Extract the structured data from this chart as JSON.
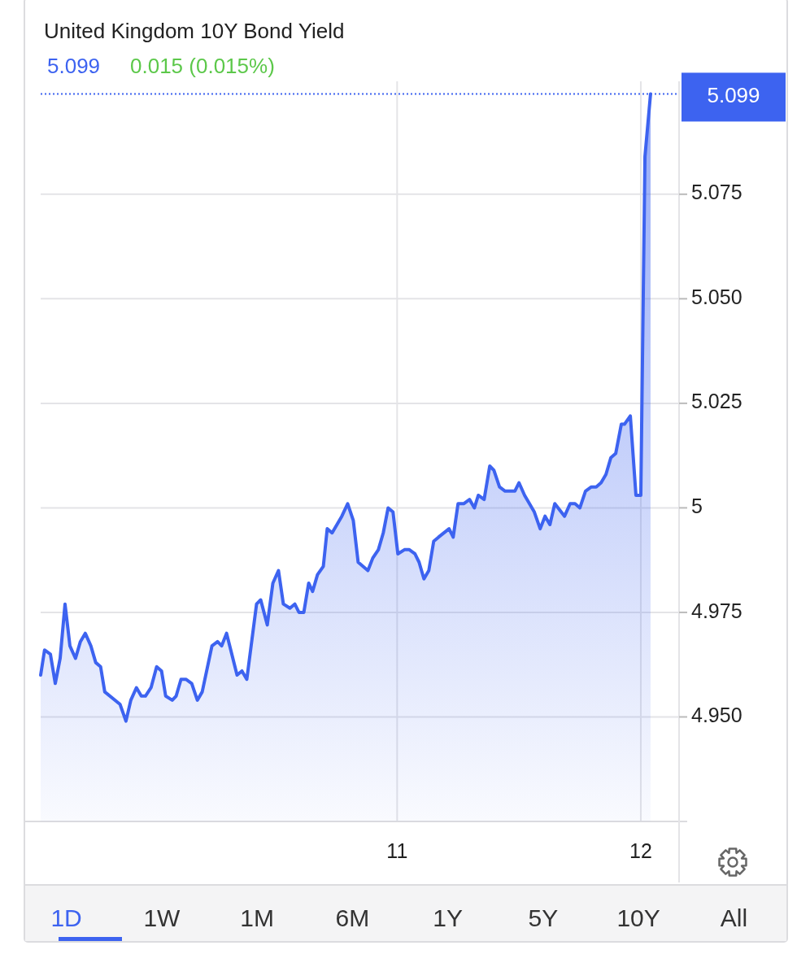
{
  "chart_data": {
    "type": "area",
    "title": "United Kingdom 10Y Bond Yield",
    "subtitle": "5.099",
    "annotations": [
      "0.015 (0.015%)",
      "1D",
      "1W",
      "1M",
      "6M",
      "1Y",
      "5Y",
      "10Y",
      "All"
    ],
    "x": [
      9.537,
      9.553,
      9.577,
      9.597,
      9.617,
      9.637,
      9.657,
      9.68,
      9.7,
      9.72,
      9.743,
      9.763,
      9.783,
      9.8,
      9.863,
      9.887,
      9.907,
      9.93,
      9.95,
      9.967,
      9.99,
      10.013,
      10.033,
      10.05,
      10.077,
      10.093,
      10.113,
      10.133,
      10.157,
      10.18,
      10.2,
      10.24,
      10.263,
      10.28,
      10.3,
      10.343,
      10.363,
      10.383,
      10.423,
      10.44,
      10.467,
      10.49,
      10.513,
      10.533,
      10.56,
      10.58,
      10.597,
      10.617,
      10.637,
      10.653,
      10.673,
      10.697,
      10.713,
      10.733,
      10.773,
      10.797,
      10.82,
      10.84,
      10.88,
      10.9,
      10.923,
      10.943,
      10.963,
      10.983,
      11.003,
      11.03,
      11.05,
      11.073,
      11.09,
      11.11,
      11.13,
      11.15,
      11.17,
      11.213,
      11.23,
      11.25,
      11.273,
      11.297,
      11.317,
      11.333,
      11.357,
      11.38,
      11.397,
      11.42,
      11.443,
      11.483,
      11.5,
      11.523,
      11.563,
      11.587,
      11.607,
      11.627,
      11.647,
      11.687,
      11.71,
      11.73,
      11.75,
      11.773,
      11.797,
      11.817,
      11.837,
      11.857,
      11.877,
      11.897,
      11.92,
      11.933,
      11.957,
      11.98,
      12.0,
      12.017,
      12.04
    ],
    "series": [
      {
        "color": "#3d63f0",
        "values": [
          4.96,
          4.966,
          4.965,
          4.958,
          4.964,
          4.977,
          4.967,
          4.964,
          4.968,
          4.97,
          4.967,
          4.963,
          4.962,
          4.956,
          4.953,
          4.949,
          4.954,
          4.957,
          4.955,
          4.955,
          4.957,
          4.962,
          4.961,
          4.955,
          4.954,
          4.955,
          4.959,
          4.959,
          4.958,
          4.954,
          4.956,
          4.967,
          4.968,
          4.967,
          4.97,
          4.96,
          4.961,
          4.959,
          4.977,
          4.978,
          4.972,
          4.982,
          4.985,
          4.977,
          4.976,
          4.977,
          4.975,
          4.975,
          4.982,
          4.98,
          4.984,
          4.986,
          4.995,
          4.994,
          4.998,
          5.001,
          4.997,
          4.987,
          4.985,
          4.988,
          4.99,
          4.994,
          5.0,
          4.999,
          4.989,
          4.99,
          4.99,
          4.989,
          4.987,
          4.983,
          4.985,
          4.992,
          4.993,
          4.995,
          4.993,
          5.001,
          5.001,
          5.002,
          5.0,
          5.003,
          5.002,
          5.01,
          5.009,
          5.005,
          5.004,
          5.004,
          5.006,
          5.003,
          4.999,
          4.995,
          4.998,
          4.996,
          5.001,
          4.998,
          5.001,
          5.001,
          5.0,
          5.004,
          5.005,
          5.005,
          5.006,
          5.008,
          5.012,
          5.013,
          5.02,
          5.02,
          5.022,
          5.003,
          5.003,
          5.084,
          5.099
        ]
      }
    ],
    "xlim": [
      9.537,
      12.157
    ],
    "xticks": [
      11,
      12
    ],
    "ylim": [
      4.925,
      5.102
    ],
    "yticks": [
      {
        "value": 4.95,
        "label": "4.950"
      },
      4.975,
      5,
      5.025,
      {
        "value": 5.05,
        "label": "5.050"
      },
      5.075
    ],
    "ref_lines": [
      {
        "axis": "y",
        "value": 5.099,
        "label": "5.099",
        "color": "#3d63f0",
        "line_style": "dotted"
      }
    ],
    "grid": true
  }
}
